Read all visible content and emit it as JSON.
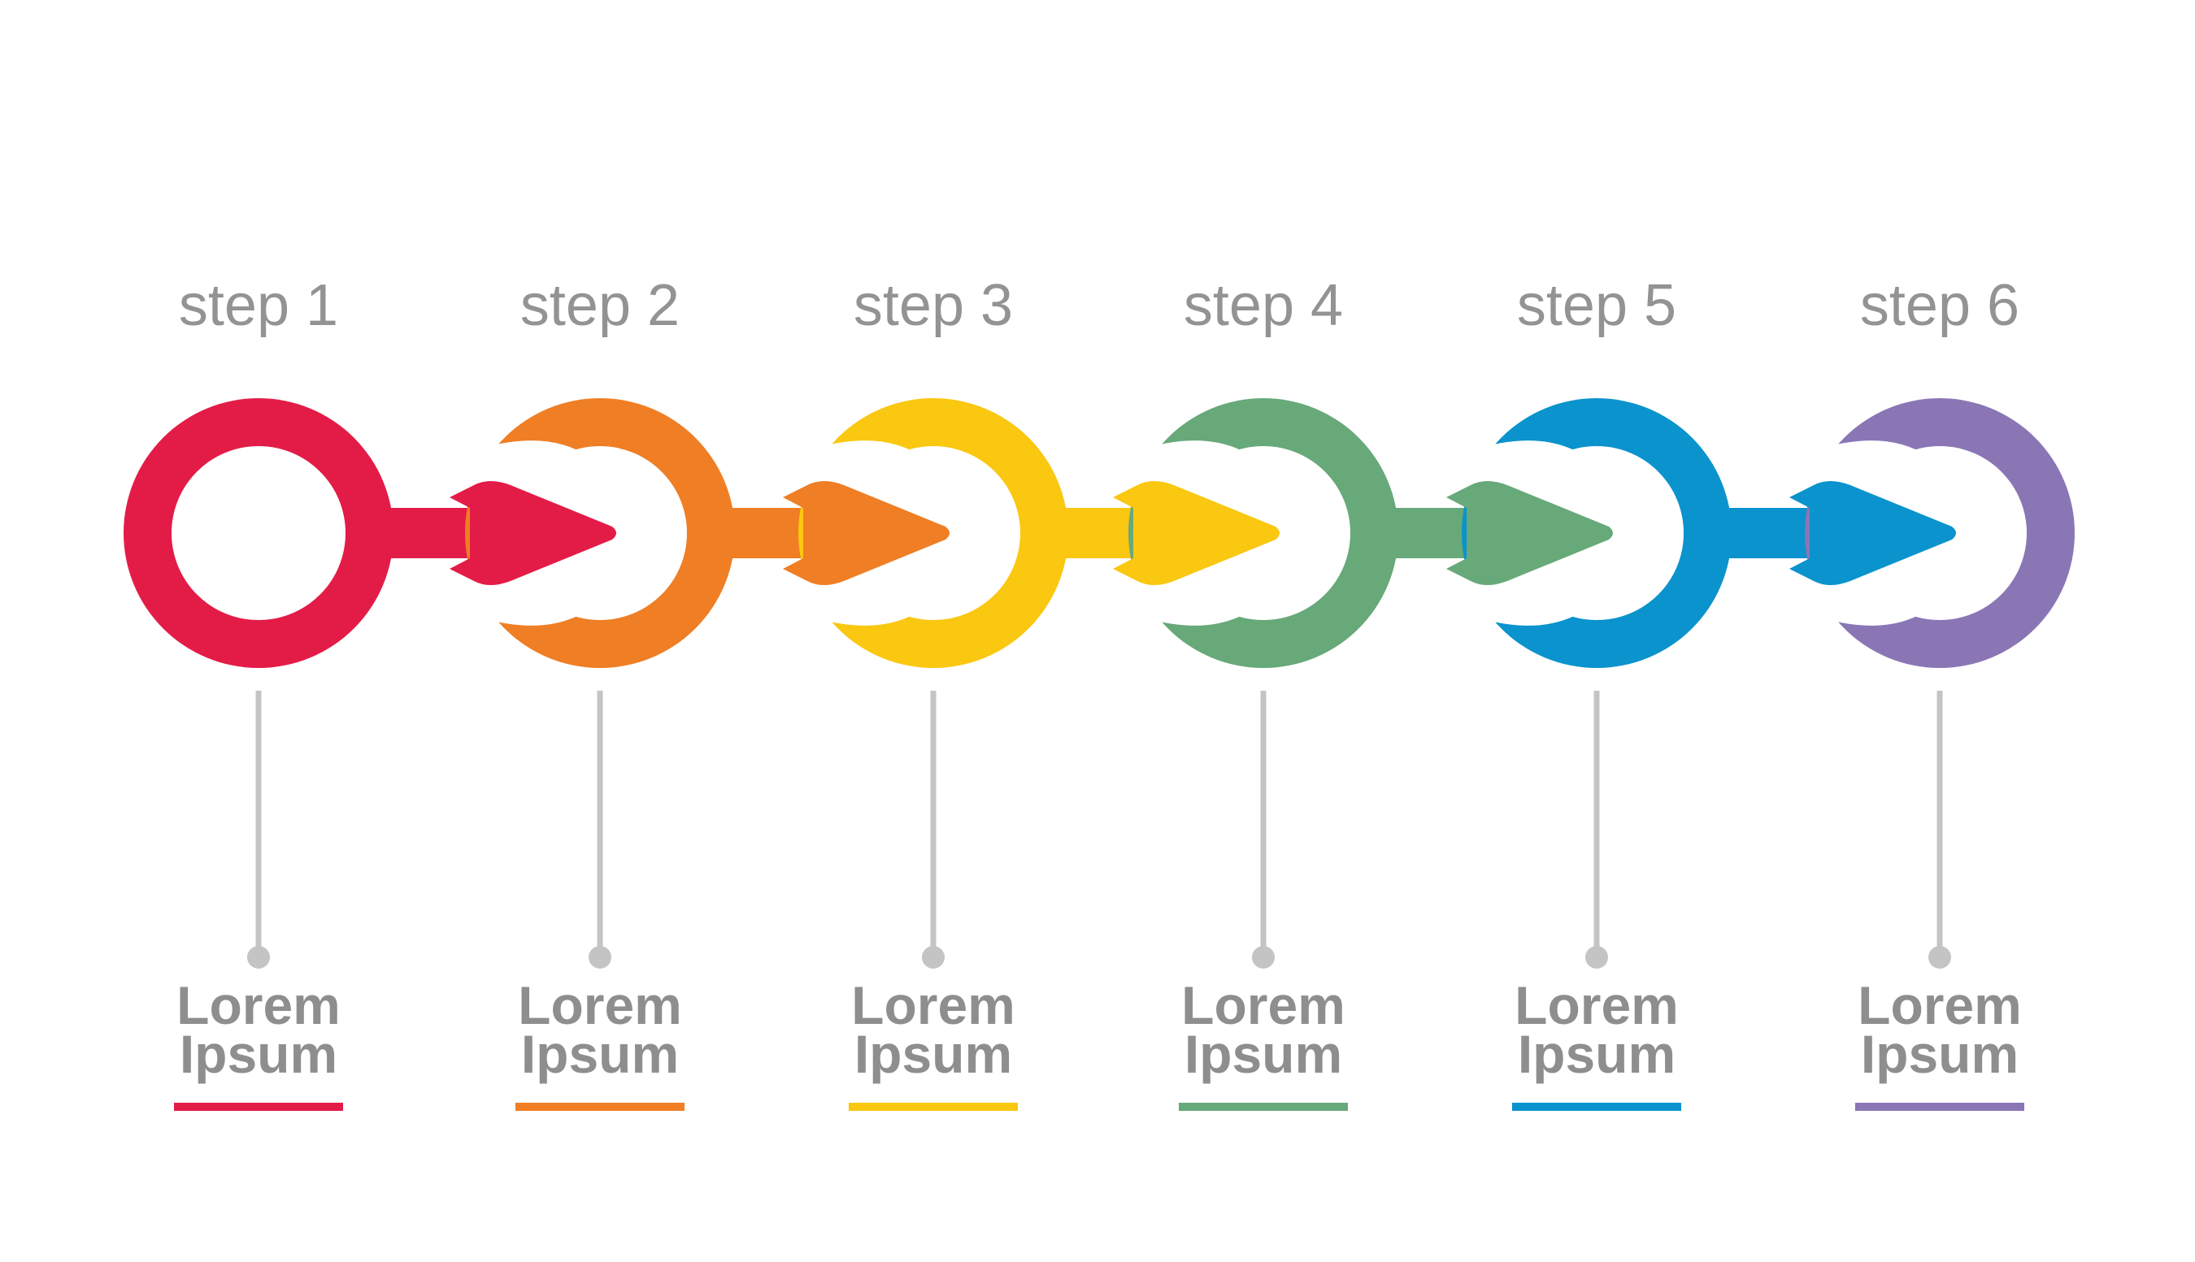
{
  "steps": [
    {
      "label": "step 1",
      "title_line1": "Lorem",
      "title_line2": "Ipsum",
      "color": "#e31c47"
    },
    {
      "label": "step 2",
      "title_line1": "Lorem",
      "title_line2": "Ipsum",
      "color": "#ef7e24"
    },
    {
      "label": "step 3",
      "title_line1": "Lorem",
      "title_line2": "Ipsum",
      "color": "#fac711"
    },
    {
      "label": "step 4",
      "title_line1": "Lorem",
      "title_line2": "Ipsum",
      "color": "#67a979"
    },
    {
      "label": "step 5",
      "title_line1": "Lorem",
      "title_line2": "Ipsum",
      "color": "#0a93cd"
    },
    {
      "label": "step 6",
      "title_line1": "Lorem",
      "title_line2": "Ipsum",
      "color": "#8a76b5"
    }
  ],
  "connector_color": "#c4c4c4",
  "label_color": "#939393"
}
